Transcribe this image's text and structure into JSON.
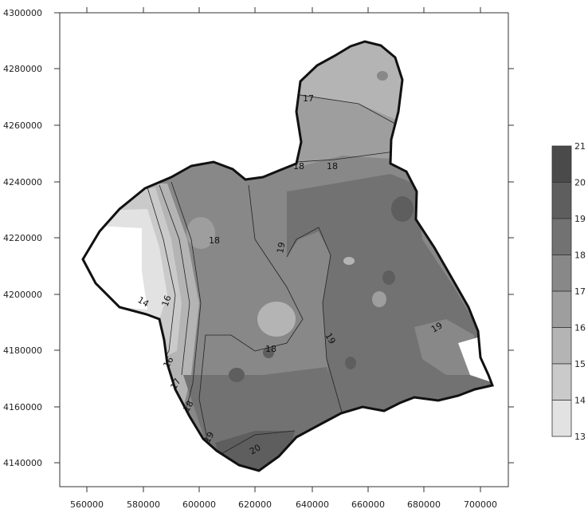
{
  "map": {
    "y_axis_labels": [
      "4300000",
      "4280000",
      "4260000",
      "4240000",
      "4220000",
      "4200000",
      "4180000",
      "4160000",
      "4140000"
    ],
    "x_axis_labels": [
      "560000",
      "580000",
      "600000",
      "620000",
      "640000",
      "660000",
      "680000",
      "700000"
    ],
    "contour_labels": [
      "17",
      "18",
      "18",
      "18",
      "19",
      "14",
      "16",
      "18",
      "19",
      "19",
      "16",
      "17",
      "18",
      "19",
      "20"
    ],
    "legend": {
      "levels": [
        "21",
        "20",
        "19",
        "18",
        "17",
        "16",
        "15",
        "14",
        "13"
      ],
      "colors": [
        "#4a4a4a",
        "#5e5e5e",
        "#727272",
        "#888888",
        "#9e9e9e",
        "#b4b4b4",
        "#cacaca",
        "#e2e2e2",
        "#ffffff"
      ]
    }
  }
}
